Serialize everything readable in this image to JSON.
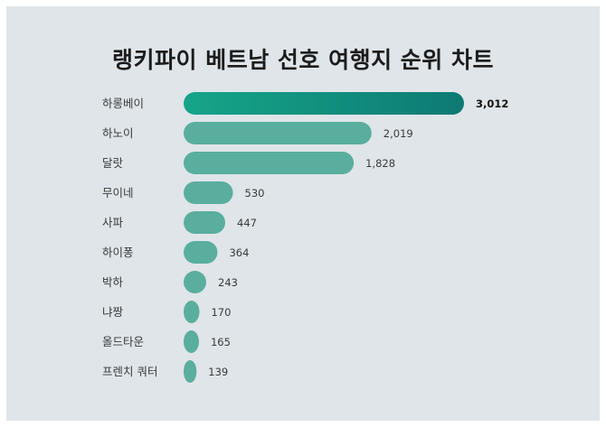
{
  "chart_data": {
    "type": "bar",
    "orientation": "horizontal",
    "title": "랭키파이 베트남 선호 여행지 순위 차트",
    "categories": [
      "하롱베이",
      "하노이",
      "달랏",
      "무이네",
      "사파",
      "하이퐁",
      "박하",
      "냐짱",
      "올드타운",
      "프렌치 쿼터"
    ],
    "values": [
      3012,
      2019,
      1828,
      530,
      447,
      364,
      243,
      170,
      165,
      139
    ],
    "value_labels": [
      "3,012",
      "2,019",
      "1,828",
      "530",
      "447",
      "364",
      "243",
      "170",
      "165",
      "139"
    ],
    "colors": {
      "top_bar_gradient": [
        "#16a589",
        "#0d7a73"
      ],
      "bar": "#5aae9e",
      "background": "#dfe5e9",
      "label": "#3a3a3a",
      "top_value_label": "#111111"
    },
    "grid": false,
    "legend": "none"
  }
}
